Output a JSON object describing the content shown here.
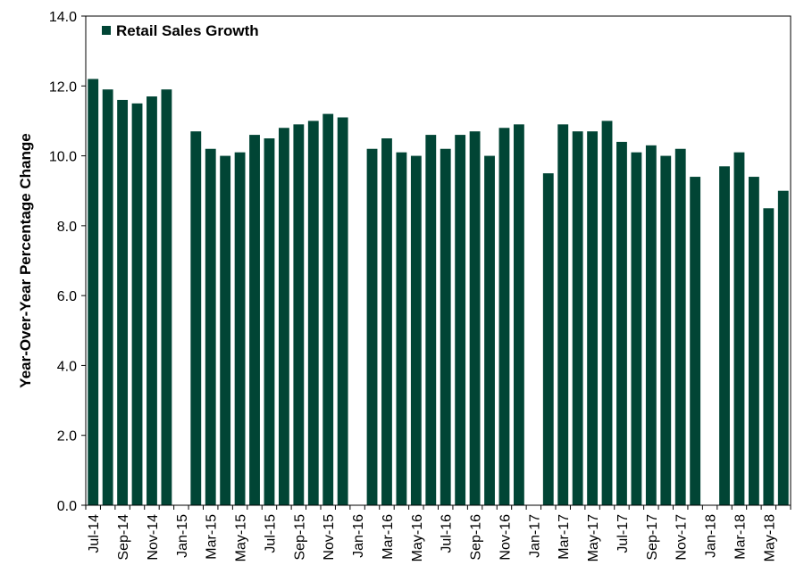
{
  "chart_data": {
    "type": "bar",
    "ylabel": "Year-Over-Year Percentage Change",
    "xlabel": "",
    "ylim": [
      0,
      14
    ],
    "yticks": [
      "0.0",
      "2.0",
      "4.0",
      "6.0",
      "8.0",
      "10.0",
      "12.0",
      "14.0"
    ],
    "legend_position": "top-left",
    "grid": false,
    "bar_color": "#014535",
    "series": [
      {
        "name": "Retail Sales Growth",
        "values": [
          12.2,
          11.9,
          11.6,
          11.5,
          11.7,
          11.9,
          null,
          10.7,
          10.2,
          10.0,
          10.1,
          10.6,
          10.5,
          10.8,
          10.9,
          11.0,
          11.2,
          11.1,
          null,
          10.2,
          10.5,
          10.1,
          10.0,
          10.6,
          10.2,
          10.6,
          10.7,
          10.0,
          10.8,
          10.9,
          null,
          9.5,
          10.9,
          10.7,
          10.7,
          11.0,
          10.4,
          10.1,
          10.3,
          10.0,
          10.2,
          9.4,
          null,
          9.7,
          10.1,
          9.4,
          8.5,
          9.0
        ]
      }
    ],
    "categories": [
      "Jul-14",
      "Aug-14",
      "Sep-14",
      "Oct-14",
      "Nov-14",
      "Dec-14",
      "Jan-15",
      "Feb-15",
      "Mar-15",
      "Apr-15",
      "May-15",
      "Jun-15",
      "Jul-15",
      "Aug-15",
      "Sep-15",
      "Oct-15",
      "Nov-15",
      "Dec-15",
      "Jan-16",
      "Feb-16",
      "Mar-16",
      "Apr-16",
      "May-16",
      "Jun-16",
      "Jul-16",
      "Aug-16",
      "Sep-16",
      "Oct-16",
      "Nov-16",
      "Dec-16",
      "Jan-17",
      "Feb-17",
      "Mar-17",
      "Apr-17",
      "May-17",
      "Jun-17",
      "Jul-17",
      "Aug-17",
      "Sep-17",
      "Oct-17",
      "Nov-17",
      "Dec-17",
      "Jan-18",
      "Feb-18",
      "Mar-18",
      "Apr-18",
      "May-18",
      "Jun-18"
    ],
    "xtick_labels": [
      "Jul-14",
      "Sep-14",
      "Nov-14",
      "Jan-15",
      "Mar-15",
      "May-15",
      "Jul-15",
      "Sep-15",
      "Nov-15",
      "Jan-16",
      "Mar-16",
      "May-16",
      "Jul-16",
      "Sep-16",
      "Nov-16",
      "Jan-17",
      "Mar-17",
      "May-17",
      "Jul-17",
      "Sep-17",
      "Nov-17",
      "Jan-18",
      "Mar-18",
      "May-18"
    ]
  }
}
